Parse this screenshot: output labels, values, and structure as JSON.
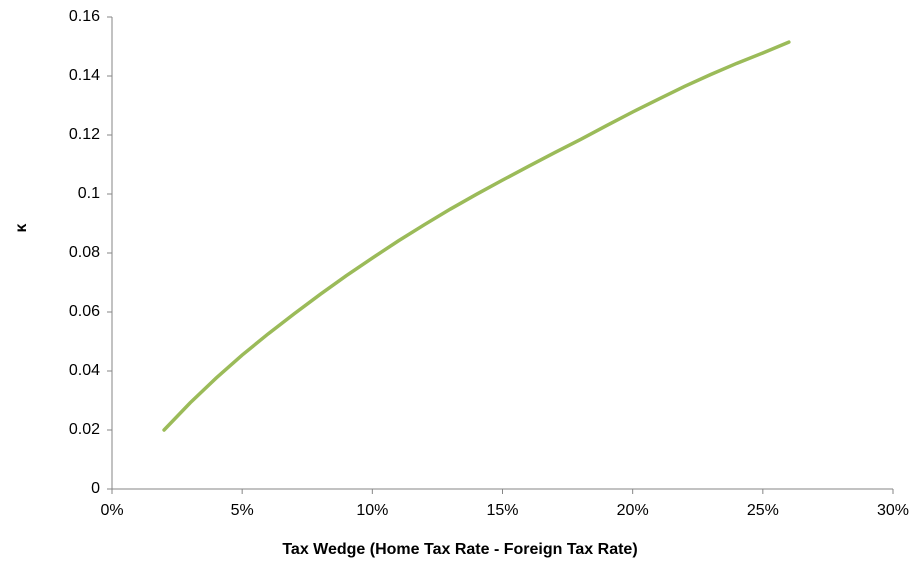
{
  "chart_data": {
    "type": "line",
    "x_label": "Tax Wedge (Home Tax Rate - Foreign Tax Rate)",
    "y_label": "κ",
    "x": [
      2,
      3,
      4,
      5,
      6,
      7,
      8,
      9,
      10,
      11,
      12,
      13,
      14,
      15,
      16,
      17,
      18,
      19,
      20,
      21,
      22,
      23,
      24,
      25,
      26
    ],
    "series": [
      {
        "color": "#9bbb59",
        "values": [
          0.02,
          0.0292,
          0.0376,
          0.0454,
          0.0526,
          0.0594,
          0.066,
          0.0723,
          0.0783,
          0.0841,
          0.0896,
          0.0949,
          0.0999,
          0.1047,
          0.1094,
          0.114,
          0.1185,
          0.1232,
          0.1278,
          0.1322,
          0.1365,
          0.1405,
          0.1443,
          0.1478,
          0.1515
        ]
      }
    ],
    "xlim": [
      0,
      30
    ],
    "xticks": [
      {
        "value": 0,
        "label": "0%"
      },
      {
        "value": 5,
        "label": "5%"
      },
      {
        "value": 10,
        "label": "10%"
      },
      {
        "value": 15,
        "label": "15%"
      },
      {
        "value": 20,
        "label": "20%"
      },
      {
        "value": 25,
        "label": "25%"
      },
      {
        "value": 30,
        "label": "30%"
      }
    ],
    "ylim": [
      0,
      0.16
    ],
    "yticks": [
      0,
      0.02,
      0.04,
      0.06,
      0.08,
      0.1,
      0.12,
      0.14,
      0.16
    ],
    "grid": false
  }
}
